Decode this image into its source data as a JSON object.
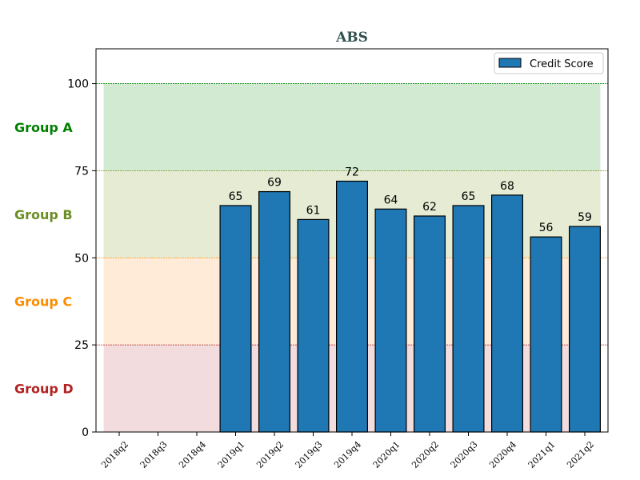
{
  "chart_data": {
    "type": "bar",
    "title": "ABS",
    "title_color": "#2f4f4f",
    "categories": [
      "2018q2",
      "2018q3",
      "2018q4",
      "2019q1",
      "2019q2",
      "2019q3",
      "2019q4",
      "2020q1",
      "2020q2",
      "2020q3",
      "2020q4",
      "2021q1",
      "2021q2"
    ],
    "series": [
      {
        "name": "Credit Score",
        "values": [
          null,
          null,
          null,
          65,
          69,
          61,
          72,
          64,
          62,
          65,
          68,
          56,
          59
        ],
        "color": "#1f77b4"
      }
    ],
    "ylim": [
      0,
      110
    ],
    "yticks": [
      0,
      25,
      50,
      75,
      100
    ],
    "xlabel": "",
    "ylabel": "",
    "legend_position": "top-right",
    "bands": [
      {
        "label": "Group A",
        "from": 75,
        "to": 100,
        "color": "#008000",
        "fill": "#2ca02c",
        "line": "#008000"
      },
      {
        "label": "Group B",
        "from": 50,
        "to": 75,
        "color": "#6b8e23",
        "fill": "#8fa83a",
        "line": "#6b8e23"
      },
      {
        "label": "Group C",
        "from": 25,
        "to": 50,
        "color": "#ff8c00",
        "fill": "#ffa64d",
        "line": "#ff8c00"
      },
      {
        "label": "Group D",
        "from": 0,
        "to": 25,
        "color": "#b22222",
        "fill": "#c8606a",
        "line": "#b22222"
      }
    ]
  }
}
